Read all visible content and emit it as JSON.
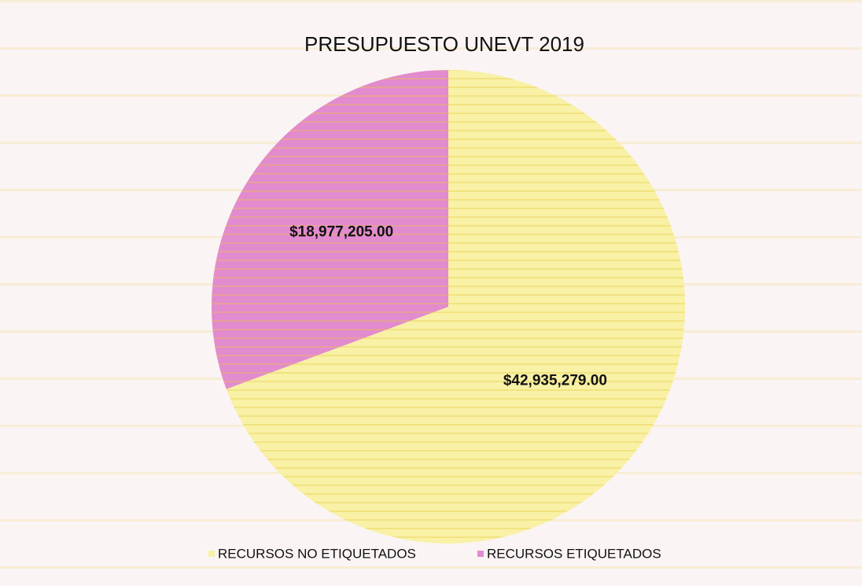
{
  "chart_data": {
    "type": "pie",
    "title": "PRESUPUESTO UNEVT 2019",
    "categories": [
      "RECURSOS NO ETIQUETADOS",
      "RECURSOS ETIQUETADOS"
    ],
    "values": [
      42935279,
      18977205
    ],
    "value_labels": [
      "$42,935,279.00",
      "$18,977,205.00"
    ],
    "colors": [
      "#f8f1a6",
      "#e38bcf"
    ],
    "legend": "bottom"
  }
}
